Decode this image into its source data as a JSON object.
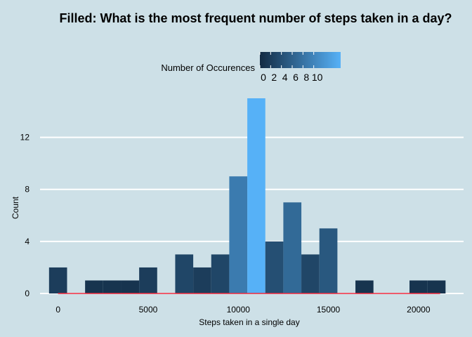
{
  "chart_data": {
    "type": "bar",
    "title": "Filled: What is the most frequent number of steps taken in a day?",
    "xlabel": "Steps taken in a single day",
    "ylabel": "Count",
    "xlim": [
      -1000,
      22500
    ],
    "ylim": [
      0,
      15
    ],
    "x_ticks": [
      0,
      5000,
      10000,
      15000,
      20000
    ],
    "y_ticks": [
      0,
      4,
      8,
      12
    ],
    "bin_width": 1000,
    "bins": [
      {
        "x0": -500,
        "x1": 500,
        "count": 2
      },
      {
        "x0": 500,
        "x1": 1500,
        "count": 0
      },
      {
        "x0": 1500,
        "x1": 2500,
        "count": 1
      },
      {
        "x0": 2500,
        "x1": 3500,
        "count": 1
      },
      {
        "x0": 3500,
        "x1": 4500,
        "count": 1
      },
      {
        "x0": 4500,
        "x1": 5500,
        "count": 2
      },
      {
        "x0": 5500,
        "x1": 6500,
        "count": 0
      },
      {
        "x0": 6500,
        "x1": 7500,
        "count": 3
      },
      {
        "x0": 7500,
        "x1": 8500,
        "count": 2
      },
      {
        "x0": 8500,
        "x1": 9500,
        "count": 3
      },
      {
        "x0": 9500,
        "x1": 10500,
        "count": 9
      },
      {
        "x0": 10500,
        "x1": 11500,
        "count": 15
      },
      {
        "x0": 11500,
        "x1": 12500,
        "count": 4
      },
      {
        "x0": 12500,
        "x1": 13500,
        "count": 7
      },
      {
        "x0": 13500,
        "x1": 14500,
        "count": 3
      },
      {
        "x0": 14500,
        "x1": 15500,
        "count": 5
      },
      {
        "x0": 15500,
        "x1": 16500,
        "count": 0
      },
      {
        "x0": 16500,
        "x1": 17500,
        "count": 1
      },
      {
        "x0": 17500,
        "x1": 18500,
        "count": 0
      },
      {
        "x0": 18500,
        "x1": 19500,
        "count": 0
      },
      {
        "x0": 19500,
        "x1": 20500,
        "count": 1
      },
      {
        "x0": 20500,
        "x1": 21500,
        "count": 1
      }
    ],
    "baseline_line": {
      "x0": 0,
      "x1": 21200,
      "y": 0,
      "color": "#e8253a"
    },
    "grid": {
      "horizontal": true,
      "vertical": false,
      "color": "#ffffff"
    },
    "legend": {
      "title": "Number of Occurences",
      "placement": "top-center",
      "range": [
        0,
        15
      ],
      "tick_values": [
        0,
        2,
        4,
        6,
        8,
        10
      ],
      "tick_labels": [
        "0",
        "2",
        "4",
        "6",
        "8",
        "10"
      ]
    },
    "color_scale": {
      "low": "#132b43",
      "high": "#56b1f7"
    },
    "background": "#cde0e7"
  }
}
